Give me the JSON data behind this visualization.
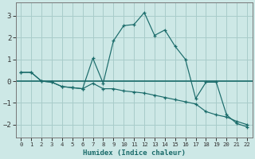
{
  "xlabel": "Humidex (Indice chaleur)",
  "background_color": "#cde8e6",
  "grid_color": "#a8ccca",
  "line_color": "#1a6b6a",
  "xlim": [
    -0.5,
    22.5
  ],
  "ylim": [
    -2.6,
    3.6
  ],
  "yticks": [
    -2,
    -1,
    0,
    1,
    2,
    3
  ],
  "xticks": [
    0,
    1,
    2,
    3,
    4,
    5,
    6,
    7,
    8,
    9,
    10,
    11,
    12,
    13,
    14,
    15,
    16,
    17,
    18,
    19,
    20,
    21,
    22
  ],
  "series1_x": [
    0,
    1,
    2,
    3,
    4,
    5,
    6,
    7,
    8,
    9,
    10,
    11,
    12,
    13,
    14,
    15,
    16,
    17,
    18,
    19,
    20,
    21,
    22
  ],
  "series1_y": [
    0.4,
    0.4,
    0.0,
    -0.05,
    -0.25,
    -0.3,
    -0.35,
    -0.1,
    -0.35,
    -0.35,
    -0.45,
    -0.5,
    -0.55,
    -0.65,
    -0.75,
    -0.85,
    -0.95,
    -1.05,
    -1.4,
    -1.55,
    -1.65,
    -1.85,
    -2.0
  ],
  "series2_x": [
    0,
    1,
    2,
    3,
    4,
    5,
    6,
    7,
    8,
    9,
    10,
    11,
    12,
    13,
    14,
    15,
    16,
    17,
    18,
    19,
    20,
    21,
    22
  ],
  "series2_y": [
    0.4,
    0.4,
    0.0,
    -0.05,
    -0.25,
    -0.3,
    -0.35,
    1.05,
    -0.1,
    1.85,
    2.55,
    2.6,
    3.15,
    2.1,
    2.35,
    1.6,
    1.0,
    -0.8,
    -0.05,
    -0.05,
    -1.55,
    -1.95,
    -2.1
  ],
  "hline_y": 0.0,
  "marker": "+"
}
